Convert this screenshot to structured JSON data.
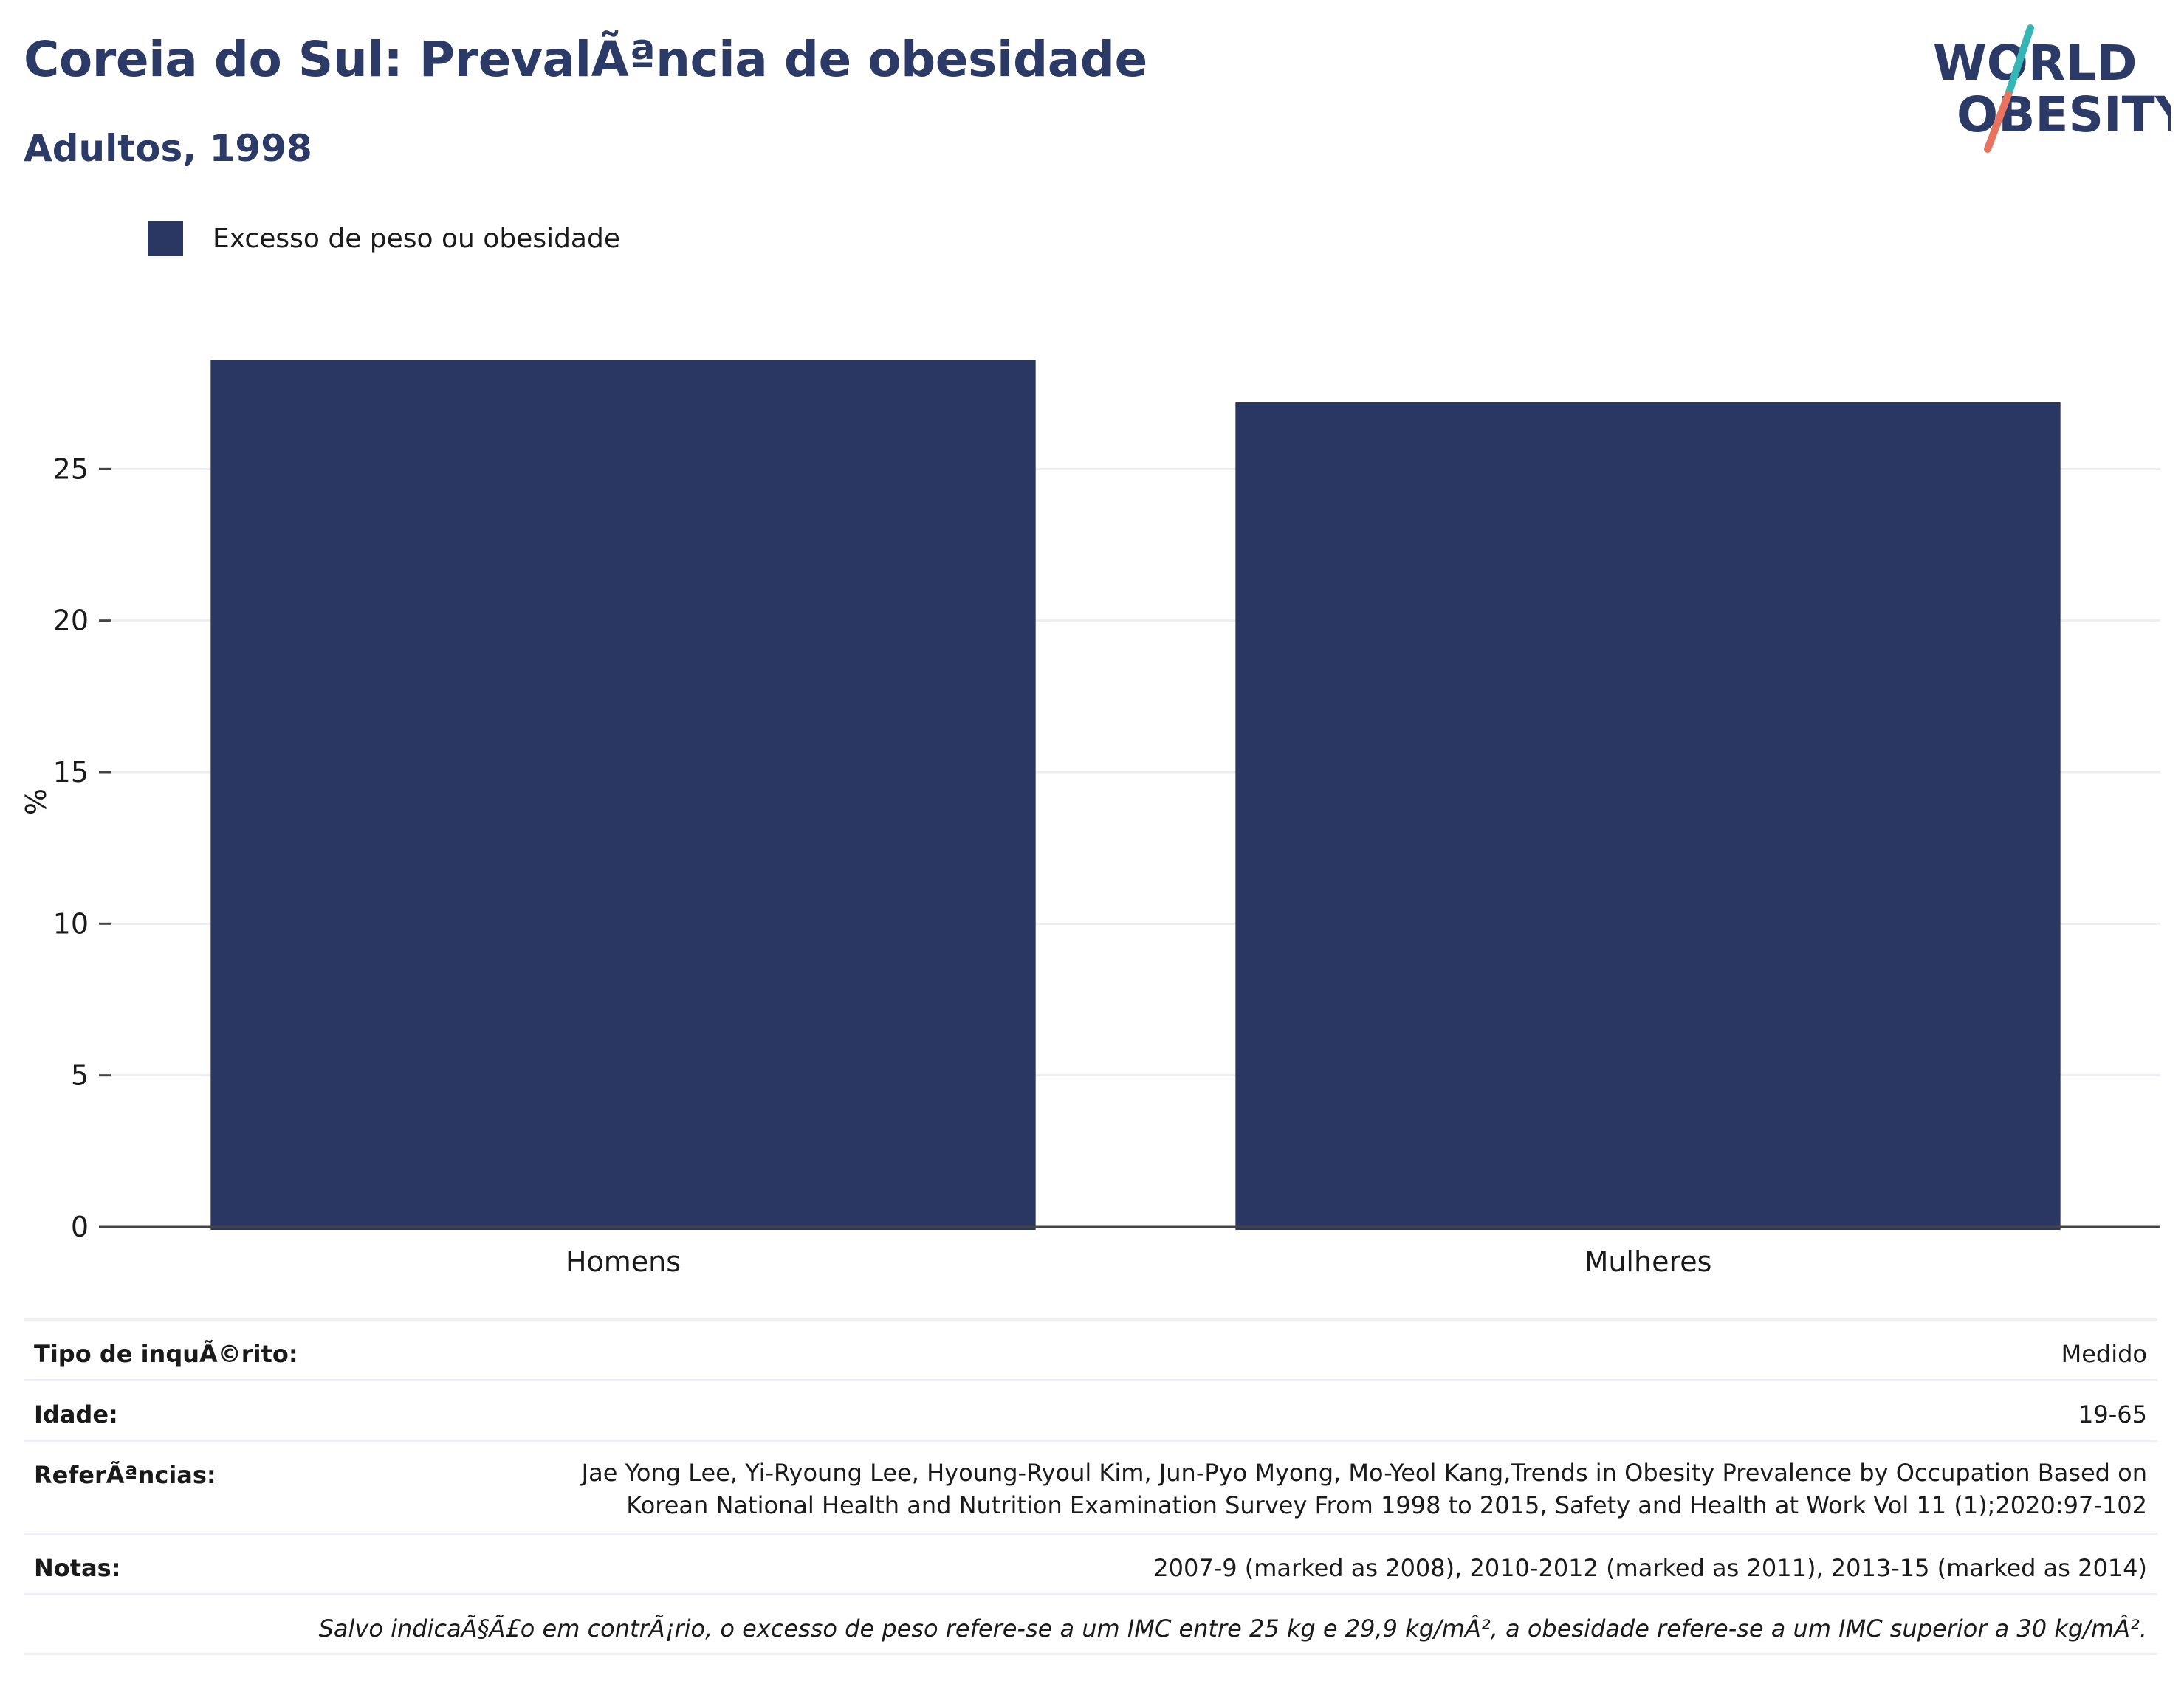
{
  "header": {
    "title": "Coreia do Sul: PrevalÃªncia de obesidade",
    "subtitle": "Adultos, 1998"
  },
  "logo": {
    "line1": "WORLD",
    "line2": "OBESITY",
    "colors": {
      "text": "#2b3a67",
      "slash_top": "#35b5b4",
      "slash_bottom": "#e8735f"
    }
  },
  "legend": {
    "items": [
      {
        "label": "Excesso de peso ou obesidade",
        "color": "#2b3763"
      }
    ]
  },
  "chart_data": {
    "type": "bar",
    "categories": [
      "Homens",
      "Mulheres"
    ],
    "series": [
      {
        "name": "Excesso de peso ou obesidade",
        "values": [
          28.6,
          27.2
        ],
        "color": "#2b3763"
      }
    ],
    "xlabel": "",
    "ylabel": "%",
    "ylim": [
      0,
      30
    ],
    "yticks": [
      0,
      5,
      10,
      15,
      20,
      25
    ],
    "grid": true,
    "legend_position": "top-left"
  },
  "info_table": {
    "survey_type": {
      "label": "Tipo de inquÃ©rito:",
      "value": "Medido"
    },
    "age": {
      "label": "Idade:",
      "value": "19-65"
    },
    "references": {
      "label": "ReferÃªncias:",
      "line1": "Jae Yong Lee, Yi-Ryoung Lee, Hyoung-Ryoul Kim, Jun-Pyo Myong, Mo-Yeol Kang,Trends in Obesity Prevalence by Occupation Based on",
      "line2": "Korean National Health and Nutrition Examination Survey From 1998 to 2015, Safety and Health at Work Vol 11 (1);2020:97-102"
    },
    "notes": {
      "label": "Notas:",
      "value": "2007-9 (marked as 2008), 2010-2012 (marked as 2011), 2013-15 (marked as 2014)"
    },
    "footnote": "Salvo indicaÃ§Ã£o em contrÃ¡rio, o excesso de peso refere-se a um IMC entre 25 kg e 29,9 kg/mÂ², a obesidade refere-se a um IMC superior a 30 kg/mÂ²."
  }
}
